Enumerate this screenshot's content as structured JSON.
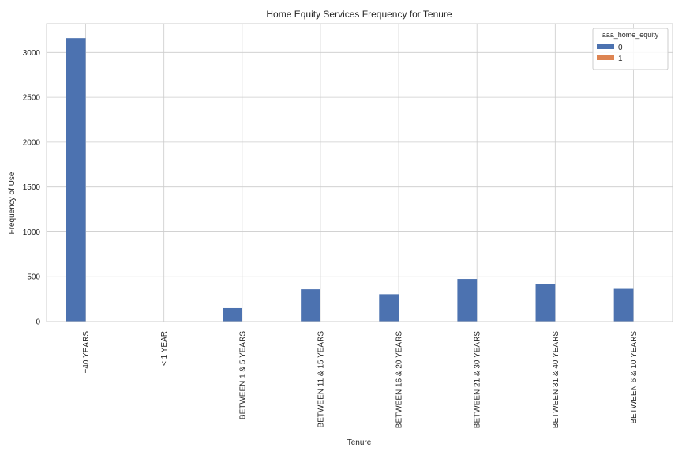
{
  "chart_data": {
    "type": "bar",
    "title": "Home Equity Services Frequency for Tenure",
    "xlabel": "Tenure",
    "ylabel": "Frequency of Use",
    "categories": [
      "+40 YEARS",
      "< 1 YEAR",
      "BETWEEN 1 & 5 YEARS",
      "BETWEEN 11 & 15 YEARS",
      "BETWEEN 16 & 20 YEARS",
      "BETWEEN 21 & 30 YEARS",
      "BETWEEN 31 & 40 YEARS",
      "BETWEEN 6 & 10 YEARS"
    ],
    "series": [
      {
        "name": "0",
        "values": [
          3160,
          0,
          150,
          360,
          305,
          475,
          420,
          365
        ],
        "color": "#4c72b0"
      },
      {
        "name": "1",
        "values": [
          0,
          0,
          0,
          0,
          0,
          0,
          0,
          0
        ],
        "color": "#dd8452"
      }
    ],
    "yticks": [
      0,
      500,
      1000,
      1500,
      2000,
      2500,
      3000
    ],
    "ylim": [
      0,
      3320
    ],
    "grid": true,
    "legend": {
      "title": "aaa_home_equity",
      "position": "top-right"
    }
  }
}
